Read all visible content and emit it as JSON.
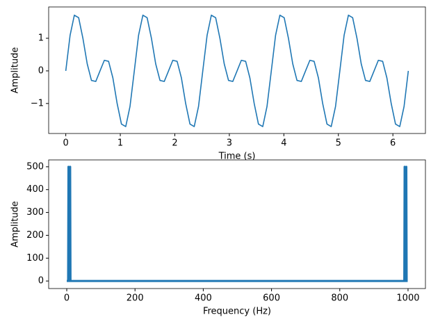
{
  "chart_data": [
    {
      "type": "line",
      "xlabel": "Time (s)",
      "ylabel": "Amplitude",
      "x": [
        0,
        0.079,
        0.157,
        0.236,
        0.314,
        0.393,
        0.471,
        0.55,
        0.628,
        0.707,
        0.785,
        0.864,
        0.942,
        1.021,
        1.1,
        1.178,
        1.257,
        1.335,
        1.414,
        1.492,
        1.571,
        1.649,
        1.728,
        1.806,
        1.885,
        1.963,
        2.042,
        2.121,
        2.199,
        2.278,
        2.356,
        2.435,
        2.513,
        2.592,
        2.67,
        2.749,
        2.827,
        2.906,
        2.985,
        3.063,
        3.142,
        3.22,
        3.299,
        3.377,
        3.456,
        3.534,
        3.613,
        3.691,
        3.77,
        3.848,
        3.927,
        4.006,
        4.084,
        4.163,
        4.241,
        4.32,
        4.398,
        4.477,
        4.555,
        4.634,
        4.712,
        4.791,
        4.869,
        4.948,
        5.027,
        5.105,
        5.184,
        5.262,
        5.341,
        5.419,
        5.498,
        5.576,
        5.655,
        5.733,
        5.812,
        5.89,
        5.969,
        6.048,
        6.126,
        6.205,
        6.283
      ],
      "series": [
        {
          "color": "#1f77b4",
          "values": [
            0,
            1.09,
            1.707,
            1.631,
            1,
            0.217,
            -0.293,
            -0.324,
            0,
            0.324,
            0.293,
            -0.217,
            -1,
            -1.631,
            -1.707,
            -1.09,
            0,
            1.09,
            1.707,
            1.631,
            1,
            0.217,
            -0.293,
            -0.324,
            0,
            0.324,
            0.293,
            -0.217,
            -1,
            -1.631,
            -1.707,
            -1.09,
            0,
            1.09,
            1.707,
            1.631,
            1,
            0.217,
            -0.293,
            -0.324,
            0,
            0.324,
            0.293,
            -0.217,
            -1,
            -1.631,
            -1.707,
            -1.09,
            0,
            1.09,
            1.707,
            1.631,
            1,
            0.217,
            -0.293,
            -0.324,
            0,
            0.324,
            0.293,
            -0.217,
            -1,
            -1.631,
            -1.707,
            -1.09,
            0,
            1.09,
            1.707,
            1.631,
            1,
            0.217,
            -0.293,
            -0.324,
            0,
            0.324,
            0.293,
            -0.217,
            -1,
            -1.631,
            -1.707,
            -1.09,
            0
          ]
        }
      ],
      "xlim": [
        -0.314,
        6.597
      ],
      "ylim": [
        -1.92,
        1.96
      ],
      "xticks": [
        0,
        1,
        2,
        3,
        4,
        5,
        6
      ],
      "yticks": [
        {
          "value": -1,
          "label": "−1"
        },
        0,
        1
      ]
    },
    {
      "type": "line",
      "xlabel": "Frequency (Hz)",
      "ylabel": "Amplitude",
      "x": [
        0,
        4,
        5,
        6,
        9,
        10,
        11,
        989,
        990,
        991,
        994,
        995,
        996,
        999
      ],
      "series": [
        {
          "color": "#1f77b4",
          "values": [
            0,
            0,
            500,
            0,
            0,
            500,
            0,
            0,
            500,
            0,
            0,
            500,
            0,
            0
          ]
        }
      ],
      "xlim": [
        -53,
        1051
      ],
      "ylim": [
        -33,
        530
      ],
      "xticks": [
        0,
        200,
        400,
        600,
        800,
        1000
      ],
      "yticks": [
        0,
        100,
        200,
        300,
        400,
        500
      ]
    }
  ]
}
